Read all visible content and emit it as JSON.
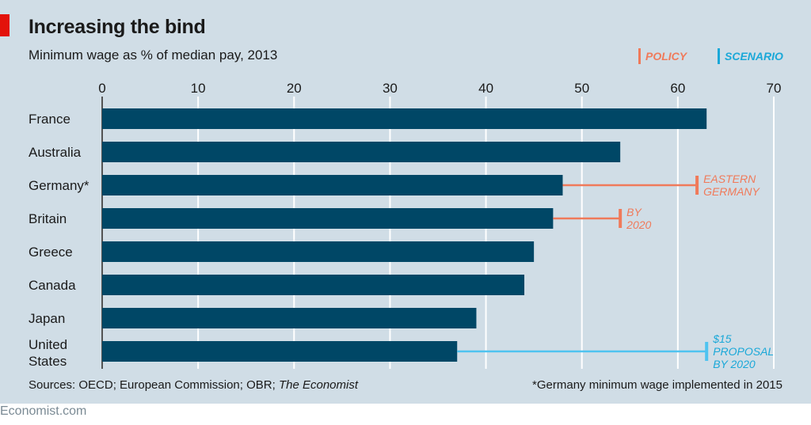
{
  "header": {
    "title": "Increasing the bind",
    "subtitle": "Minimum wage as % of median pay, 2013"
  },
  "legend": {
    "policy": "POLICY",
    "scenario": "SCENARIO"
  },
  "colors": {
    "bar": "#004766",
    "policy": "#f07a5a",
    "scenario": "#4fc3f0",
    "panel": "#d0dde6",
    "grid": "#ffffff"
  },
  "chart_data": {
    "type": "bar",
    "orientation": "horizontal",
    "title": "Increasing the bind",
    "subtitle": "Minimum wage as % of median pay, 2013",
    "xlim": [
      0,
      70
    ],
    "xticks": [
      0,
      10,
      20,
      30,
      40,
      50,
      60,
      70
    ],
    "grid": true,
    "categories": [
      "France",
      "Australia",
      "Germany*",
      "Britain",
      "Greece",
      "Canada",
      "Japan",
      "United States"
    ],
    "values": [
      63,
      54,
      48,
      47,
      45,
      44,
      39,
      37
    ],
    "annotations": [
      {
        "category": "Germany*",
        "kind": "policy",
        "from": 48,
        "to": 62,
        "lines": [
          "EASTERN",
          "GERMANY"
        ]
      },
      {
        "category": "Britain",
        "kind": "policy",
        "from": 47,
        "to": 54,
        "lines": [
          "BY",
          "2020"
        ]
      },
      {
        "category": "United States",
        "kind": "scenario",
        "from": 37,
        "to": 63,
        "lines": [
          "$15",
          "PROPOSAL",
          "BY 2020"
        ]
      }
    ]
  },
  "footer": {
    "sources_prefix": "Sources: OECD; European Commission; OBR; ",
    "sources_italic": "The Economist",
    "note": "*Germany minimum wage implemented in 2015"
  },
  "brand": "Economist.com"
}
